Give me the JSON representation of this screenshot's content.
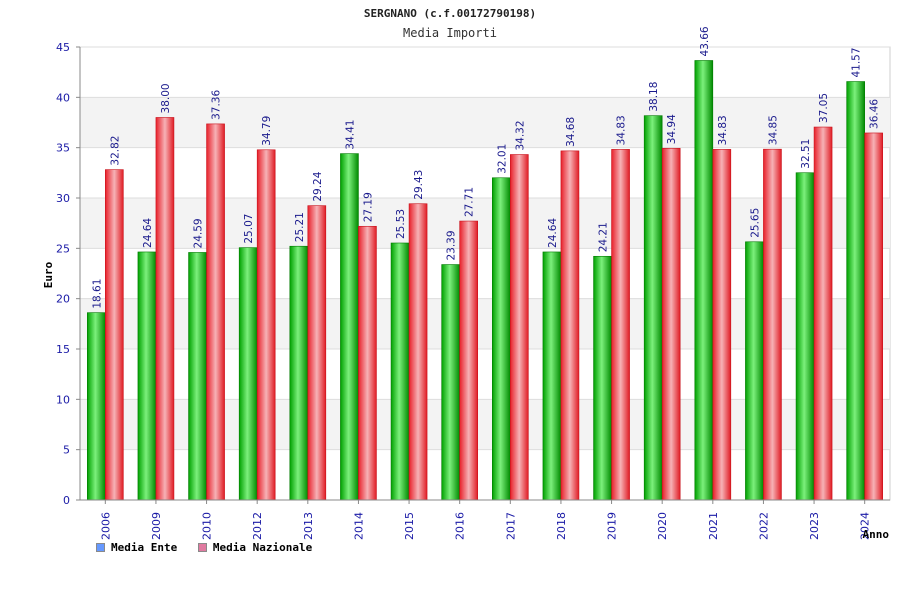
{
  "chart_data": {
    "type": "bar",
    "title": "SERGNANO (c.f.00172790198)",
    "subtitle": "Media Importi",
    "xlabel": "Anno",
    "ylabel": "Euro",
    "ylim": [
      0,
      45
    ],
    "yticks": [
      0,
      5,
      10,
      15,
      20,
      25,
      30,
      35,
      40,
      45
    ],
    "grid": true,
    "legend_position": "bottom-left",
    "categories": [
      "2006",
      "2009",
      "2010",
      "2012",
      "2013",
      "2014",
      "2015",
      "2016",
      "2017",
      "2018",
      "2019",
      "2020",
      "2021",
      "2022",
      "2023",
      "2024"
    ],
    "series": [
      {
        "name": "Media Ente",
        "color": "#00a000",
        "legend_color": "#6699ff",
        "values": [
          18.61,
          24.64,
          24.59,
          25.07,
          25.21,
          34.41,
          25.53,
          23.39,
          32.01,
          24.64,
          24.21,
          38.18,
          43.66,
          25.65,
          32.51,
          41.57
        ],
        "labels": [
          "18.61",
          "24.64",
          "24.59",
          "25.07",
          "25.21",
          "34.41",
          "25.53",
          "23.39",
          "32.01",
          "24.64",
          "24.21",
          "38.18",
          "43.66",
          "25.65",
          "32.51",
          "41.57"
        ]
      },
      {
        "name": "Media Nazionale",
        "color": "#e8202a",
        "legend_color": "#e07aa0",
        "values": [
          32.82,
          38.0,
          37.36,
          34.79,
          29.24,
          27.19,
          29.43,
          27.71,
          34.32,
          34.68,
          34.83,
          34.94,
          34.83,
          34.85,
          37.05,
          36.46
        ],
        "labels": [
          "32.82",
          "38.00",
          "37.36",
          "34.79",
          "29.24",
          "27.19",
          "29.43",
          "27.71",
          "34.32",
          "34.68",
          "34.83",
          "34.94",
          "34.83",
          "34.85",
          "37.05",
          "36.46"
        ]
      }
    ]
  }
}
